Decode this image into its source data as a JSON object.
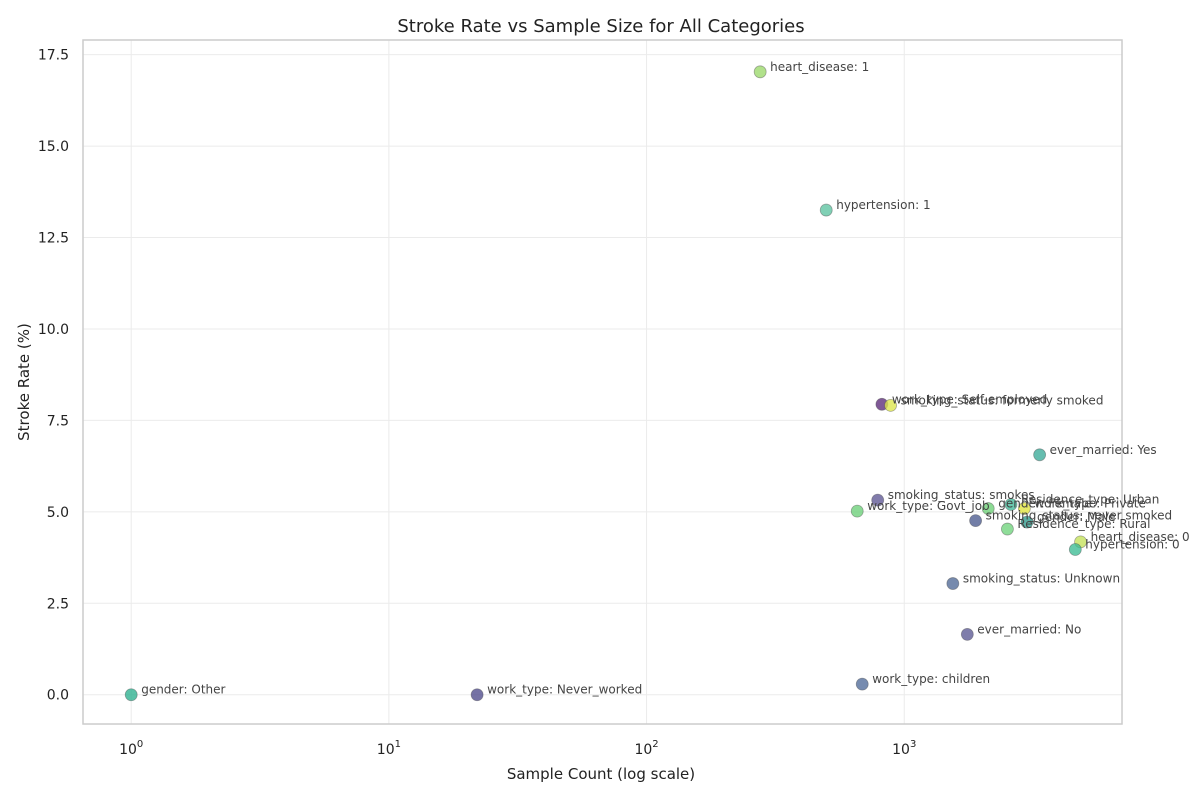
{
  "chart_data": {
    "type": "scatter",
    "title": "Stroke Rate vs Sample Size for All Categories",
    "xlabel": "Sample Count (log scale)",
    "ylabel": "Stroke Rate (%)",
    "x_scale": "log",
    "xlim": [
      0.65,
      7000
    ],
    "ylim": [
      -0.8,
      17.9
    ],
    "x_ticks": [
      {
        "value": 1,
        "base": "10",
        "exp": "0"
      },
      {
        "value": 10,
        "base": "10",
        "exp": "1"
      },
      {
        "value": 100,
        "base": "10",
        "exp": "2"
      },
      {
        "value": 1000,
        "base": "10",
        "exp": "3"
      }
    ],
    "y_ticks": [
      0.0,
      2.5,
      5.0,
      7.5,
      10.0,
      12.5,
      15.0,
      17.5
    ],
    "y_tick_labels": [
      "0.0",
      "2.5",
      "5.0",
      "7.5",
      "10.0",
      "12.5",
      "15.0",
      "17.5"
    ],
    "grid": true,
    "points": [
      {
        "label": "heart_disease: 1",
        "x": 276,
        "y": 17.03,
        "color": "#9bd86a"
      },
      {
        "label": "hypertension: 1",
        "x": 498,
        "y": 13.25,
        "color": "#5cc3a0"
      },
      {
        "label": "work_type: Self-employed",
        "x": 819,
        "y": 7.94,
        "color": "#5b2a78"
      },
      {
        "label": "smoking_status: formerly smoked",
        "x": 885,
        "y": 7.91,
        "color": "#dde64a"
      },
      {
        "label": "ever_married: Yes",
        "x": 3353,
        "y": 6.56,
        "color": "#3aaa98"
      },
      {
        "label": "smoking_status: smokes",
        "x": 789,
        "y": 5.32,
        "color": "#5d5693"
      },
      {
        "label": "work_type: Govt_job",
        "x": 657,
        "y": 5.02,
        "color": "#6bcf78"
      },
      {
        "label": "gender: Female",
        "x": 2118,
        "y": 5.09,
        "color": "#6cd176"
      },
      {
        "label": "Residence_type: Urban",
        "x": 2596,
        "y": 5.2,
        "color": "#41b898"
      },
      {
        "label": "work_type: Private",
        "x": 2925,
        "y": 5.09,
        "color": "#e2e43c"
      },
      {
        "label": "smoking_status: never smoked",
        "x": 1892,
        "y": 4.76,
        "color": "#4a5a8e"
      },
      {
        "label": "gender: Male",
        "x": 2994,
        "y": 4.72,
        "color": "#2d9a8c"
      },
      {
        "label": "Residence_type: Rural",
        "x": 2514,
        "y": 4.53,
        "color": "#6fd37c"
      },
      {
        "label": "heart_disease: 0",
        "x": 4834,
        "y": 4.18,
        "color": "#c4e25a"
      },
      {
        "label": "hypertension: 0",
        "x": 4612,
        "y": 3.97,
        "color": "#3bbb94"
      },
      {
        "label": "smoking_status: Unknown",
        "x": 1544,
        "y": 3.04,
        "color": "#4f6996"
      },
      {
        "label": "ever_married: No",
        "x": 1757,
        "y": 1.65,
        "color": "#5b5994"
      },
      {
        "label": "work_type: children",
        "x": 687,
        "y": 0.29,
        "color": "#4f6a99"
      },
      {
        "label": "gender: Other",
        "x": 1,
        "y": 0.0,
        "color": "#2bb08e"
      },
      {
        "label": "work_type: Never_worked",
        "x": 22,
        "y": 0.0,
        "color": "#4e4a8c"
      }
    ]
  }
}
